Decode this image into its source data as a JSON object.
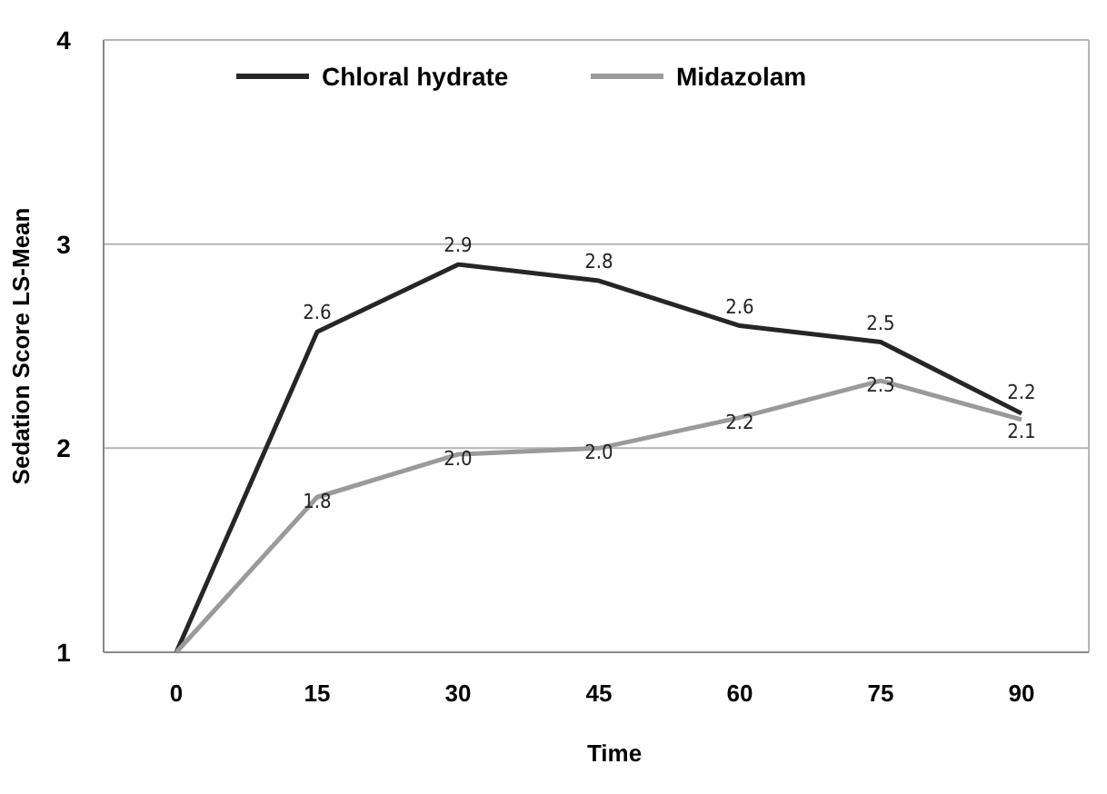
{
  "chart_data": {
    "type": "line",
    "xlabel": "Time",
    "ylabel": "Sedation Score LS-Mean",
    "categories": [
      "0",
      "15",
      "30",
      "45",
      "60",
      "75",
      "90"
    ],
    "ylim": [
      1,
      4
    ],
    "yticks": [
      1,
      2,
      3,
      4
    ],
    "grid": "y",
    "legend": "top left",
    "marker": "none",
    "line_style": "solid",
    "series": [
      {
        "name": "Chloral hydrate",
        "color": "#262626",
        "values": [
          1,
          2.57,
          2.9,
          2.82,
          2.6,
          2.52,
          2.17
        ],
        "value_labels": [
          null,
          "2.6",
          "2.9",
          "2.8",
          "2.6",
          "2.5",
          "2.2"
        ]
      },
      {
        "name": "Midazolam",
        "color": "#9a9a9a",
        "values": [
          1,
          1.76,
          1.97,
          2.0,
          2.15,
          2.33,
          2.14
        ],
        "value_labels": [
          null,
          "1.8",
          "2.0",
          "2.0",
          "2.2",
          "2.3",
          "2.1"
        ]
      }
    ]
  }
}
